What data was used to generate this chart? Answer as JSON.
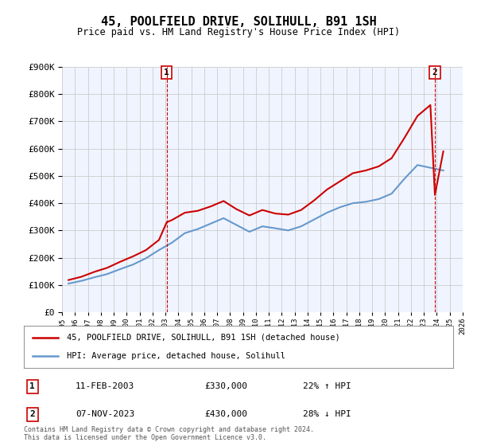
{
  "title": "45, POOLFIELD DRIVE, SOLIHULL, B91 1SH",
  "subtitle": "Price paid vs. HM Land Registry's House Price Index (HPI)",
  "ylabel_ticks": [
    "£0",
    "£100K",
    "£200K",
    "£300K",
    "£400K",
    "£500K",
    "£600K",
    "£700K",
    "£800K",
    "£900K"
  ],
  "ylim": [
    0,
    900000
  ],
  "years": [
    1995,
    1996,
    1997,
    1998,
    1999,
    2000,
    2001,
    2002,
    2003,
    2004,
    2005,
    2006,
    2007,
    2008,
    2009,
    2010,
    2011,
    2012,
    2013,
    2014,
    2015,
    2016,
    2017,
    2018,
    2019,
    2020,
    2021,
    2022,
    2023,
    2024,
    2025,
    2026
  ],
  "hpi_color": "#6699cc",
  "price_color": "#cc0000",
  "vline_color": "#cc0000",
  "grid_color": "#cccccc",
  "background_color": "#ffffff",
  "plot_bg_color": "#f0f4ff",
  "legend_label_red": "45, POOLFIELD DRIVE, SOLIHULL, B91 1SH (detached house)",
  "legend_label_blue": "HPI: Average price, detached house, Solihull",
  "transaction1_label": "1",
  "transaction1_date": "11-FEB-2003",
  "transaction1_price": "£330,000",
  "transaction1_hpi": "22% ↑ HPI",
  "transaction1_year": 2003.1,
  "transaction1_value": 330000,
  "transaction2_label": "2",
  "transaction2_date": "07-NOV-2023",
  "transaction2_price": "£430,000",
  "transaction2_hpi": "28% ↓ HPI",
  "transaction2_year": 2023.85,
  "transaction2_value": 430000,
  "footer": "Contains HM Land Registry data © Crown copyright and database right 2024.\nThis data is licensed under the Open Government Licence v3.0.",
  "tick_years": [
    1995,
    1996,
    1997,
    1998,
    1999,
    2000,
    2001,
    2002,
    2003,
    2004,
    2005,
    2006,
    2007,
    2008,
    2009,
    2010,
    2011,
    2012,
    2013,
    2014,
    2015,
    2016,
    2017,
    2018,
    2019,
    2020,
    2021,
    2022,
    2023,
    2024,
    2025,
    2026
  ]
}
